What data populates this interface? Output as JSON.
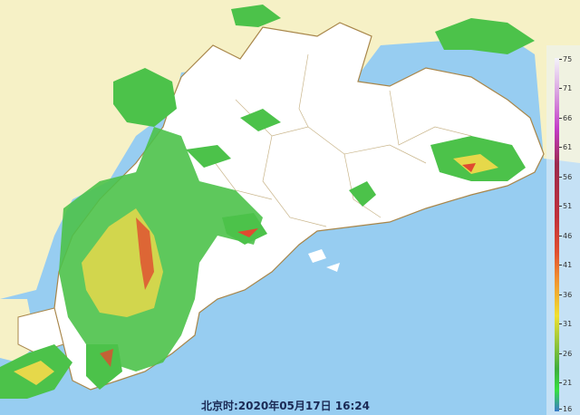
{
  "map": {
    "colors": {
      "sea": "#97cdf1",
      "province_land": "#ffffff",
      "neighbor_land": "#f6f1c6",
      "boundary": "#a8864a",
      "echo_weak": "#4cc24a",
      "echo_moderate": "#e6d84a",
      "echo_strong": "#e04a30"
    }
  },
  "legend": {
    "unit_ticks": [
      "75",
      "71",
      "66",
      "61",
      "56",
      "51",
      "46",
      "41",
      "36",
      "31",
      "26",
      "21",
      "16"
    ]
  },
  "timestamp": {
    "text": "北京时:2020年05月17日 16:24"
  }
}
